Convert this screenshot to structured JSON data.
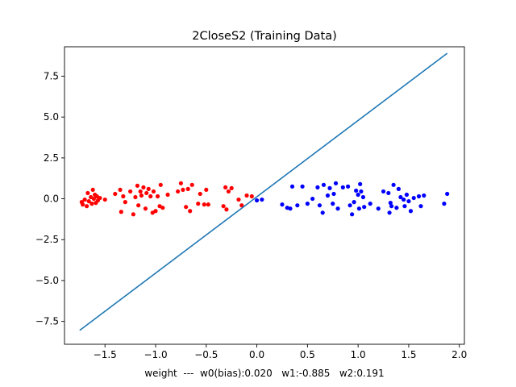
{
  "chart_data": {
    "type": "scatter",
    "title": "2CloseS2 (Training Data)",
    "xlabel": "weight  ---  w0(bias):0.020   w1:-0.885   w2:0.191",
    "ylabel": "",
    "xlim": [
      -1.9,
      2.05
    ],
    "ylim": [
      -8.9,
      9.3
    ],
    "x_ticks": [
      -1.5,
      -1.0,
      -0.5,
      0.0,
      0.5,
      1.0,
      1.5,
      2.0
    ],
    "x_tick_labels": [
      "−1.5",
      "−1.0",
      "−0.5",
      "0.0",
      "0.5",
      "1.0",
      "1.5",
      "2.0"
    ],
    "y_ticks": [
      -7.5,
      -5.0,
      -2.5,
      0.0,
      2.5,
      5.0,
      7.5
    ],
    "y_tick_labels": [
      "−7.5",
      "−5.0",
      "−2.5",
      "0.0",
      "2.5",
      "5.0",
      "7.5"
    ],
    "grid": false,
    "legend": "none",
    "series": [
      {
        "color": "#ff0000",
        "marker": "circle",
        "points": [
          [
            -1.73,
            -0.2
          ],
          [
            -1.72,
            -0.35
          ],
          [
            -1.7,
            -0.05
          ],
          [
            -1.68,
            -0.45
          ],
          [
            -1.67,
            0.35
          ],
          [
            -1.66,
            -0.15
          ],
          [
            -1.64,
            0.1
          ],
          [
            -1.63,
            -0.3
          ],
          [
            -1.62,
            0.55
          ],
          [
            -1.61,
            0.0
          ],
          [
            -1.6,
            0.25
          ],
          [
            -1.59,
            -0.25
          ],
          [
            -1.58,
            0.15
          ],
          [
            -1.57,
            -0.1
          ],
          [
            -1.55,
            0.05
          ],
          [
            -1.5,
            -0.05
          ],
          [
            -1.4,
            0.3
          ],
          [
            -1.35,
            0.55
          ],
          [
            -1.34,
            -0.8
          ],
          [
            -1.32,
            0.15
          ],
          [
            -1.3,
            -0.2
          ],
          [
            -1.25,
            0.45
          ],
          [
            -1.22,
            -0.95
          ],
          [
            -1.2,
            0.1
          ],
          [
            -1.18,
            0.8
          ],
          [
            -1.17,
            -0.4
          ],
          [
            -1.15,
            0.45
          ],
          [
            -1.14,
            0.2
          ],
          [
            -1.12,
            0.7
          ],
          [
            -1.1,
            -0.6
          ],
          [
            -1.09,
            0.35
          ],
          [
            -1.07,
            0.6
          ],
          [
            -1.05,
            0.15
          ],
          [
            -1.03,
            -0.85
          ],
          [
            -1.02,
            0.45
          ],
          [
            -1.0,
            -0.75
          ],
          [
            -0.98,
            0.15
          ],
          [
            -0.96,
            -0.45
          ],
          [
            -0.95,
            0.85
          ],
          [
            -0.93,
            -0.55
          ],
          [
            -0.88,
            0.25
          ],
          [
            -0.78,
            0.45
          ],
          [
            -0.75,
            0.95
          ],
          [
            -0.73,
            0.55
          ],
          [
            -0.7,
            -0.5
          ],
          [
            -0.68,
            0.6
          ],
          [
            -0.66,
            -0.75
          ],
          [
            -0.64,
            0.85
          ],
          [
            -0.58,
            -0.3
          ],
          [
            -0.56,
            0.3
          ],
          [
            -0.52,
            -0.35
          ],
          [
            -0.5,
            0.55
          ],
          [
            -0.48,
            -0.35
          ],
          [
            -0.33,
            -0.45
          ],
          [
            -0.31,
            0.7
          ],
          [
            -0.3,
            -0.65
          ],
          [
            -0.28,
            0.45
          ],
          [
            -0.25,
            0.65
          ],
          [
            -0.18,
            -0.05
          ],
          [
            -0.15,
            -0.4
          ],
          [
            -0.1,
            0.2
          ],
          [
            -0.05,
            0.15
          ]
        ]
      },
      {
        "color": "#0000ff",
        "marker": "circle",
        "points": [
          [
            0.0,
            -0.1
          ],
          [
            0.05,
            -0.05
          ],
          [
            0.25,
            -0.35
          ],
          [
            0.3,
            -0.55
          ],
          [
            0.33,
            -0.6
          ],
          [
            0.35,
            0.75
          ],
          [
            0.4,
            -0.4
          ],
          [
            0.45,
            0.75
          ],
          [
            0.5,
            -0.3
          ],
          [
            0.55,
            0.0
          ],
          [
            0.6,
            0.7
          ],
          [
            0.62,
            -0.4
          ],
          [
            0.65,
            -0.85
          ],
          [
            0.66,
            0.85
          ],
          [
            0.7,
            0.2
          ],
          [
            0.72,
            0.65
          ],
          [
            0.75,
            -0.3
          ],
          [
            0.76,
            0.3
          ],
          [
            0.78,
            0.95
          ],
          [
            0.8,
            -0.6
          ],
          [
            0.85,
            0.7
          ],
          [
            0.9,
            0.75
          ],
          [
            0.92,
            -0.4
          ],
          [
            0.94,
            -0.95
          ],
          [
            0.96,
            -0.2
          ],
          [
            0.98,
            0.5
          ],
          [
            1.0,
            0.25
          ],
          [
            1.01,
            -0.6
          ],
          [
            1.02,
            0.9
          ],
          [
            1.03,
            0.45
          ],
          [
            1.05,
            0.1
          ],
          [
            1.06,
            -0.5
          ],
          [
            1.12,
            -0.3
          ],
          [
            1.2,
            -0.6
          ],
          [
            1.25,
            0.45
          ],
          [
            1.3,
            0.35
          ],
          [
            1.31,
            -0.85
          ],
          [
            1.32,
            -0.25
          ],
          [
            1.33,
            -0.45
          ],
          [
            1.35,
            0.85
          ],
          [
            1.38,
            -0.55
          ],
          [
            1.4,
            0.6
          ],
          [
            1.42,
            0.1
          ],
          [
            1.45,
            -0.05
          ],
          [
            1.46,
            -0.45
          ],
          [
            1.48,
            0.25
          ],
          [
            1.5,
            -0.15
          ],
          [
            1.52,
            -0.75
          ],
          [
            1.55,
            0.05
          ],
          [
            1.6,
            0.15
          ],
          [
            1.62,
            -0.45
          ],
          [
            1.65,
            0.2
          ],
          [
            1.85,
            -0.3
          ],
          [
            1.88,
            0.3
          ]
        ]
      },
      {
        "color": "#1f77b4",
        "marker": "line",
        "points": [
          [
            -1.75,
            -8.05
          ],
          [
            1.88,
            8.9
          ]
        ]
      }
    ]
  }
}
